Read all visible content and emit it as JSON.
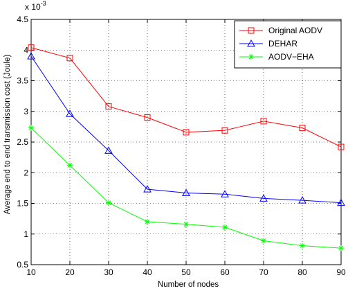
{
  "chart_data": {
    "type": "line",
    "xlabel": "Number of nodes",
    "ylabel": "Average end to end transmission cost (Joule)",
    "y_multiplier": "x 10",
    "y_multiplier_exp": "-3",
    "x": [
      10,
      20,
      30,
      40,
      50,
      60,
      70,
      80,
      90
    ],
    "xlim": [
      10,
      90
    ],
    "ylim": [
      0.5,
      4.5
    ],
    "xticks": [
      "10",
      "20",
      "30",
      "40",
      "50",
      "60",
      "70",
      "80",
      "90"
    ],
    "yticks": [
      "0.5",
      "1",
      "1.5",
      "2",
      "2.5",
      "3",
      "3.5",
      "4",
      "4.5"
    ],
    "grid": true,
    "legend_position": "top-right",
    "series": [
      {
        "name": "Original AODV",
        "color": "#ff0000",
        "marker": "square",
        "values": [
          4.04,
          3.87,
          3.08,
          2.9,
          2.66,
          2.69,
          2.84,
          2.73,
          2.42
        ]
      },
      {
        "name": "DEHAR",
        "color": "#0000ff",
        "marker": "triangle",
        "values": [
          3.9,
          2.96,
          2.36,
          1.73,
          1.67,
          1.65,
          1.58,
          1.55,
          1.51
        ]
      },
      {
        "name": "AODV−EHA",
        "color": "#00ff00",
        "marker": "star",
        "values": [
          2.73,
          2.12,
          1.51,
          1.2,
          1.16,
          1.11,
          0.89,
          0.81,
          0.77
        ]
      }
    ]
  }
}
